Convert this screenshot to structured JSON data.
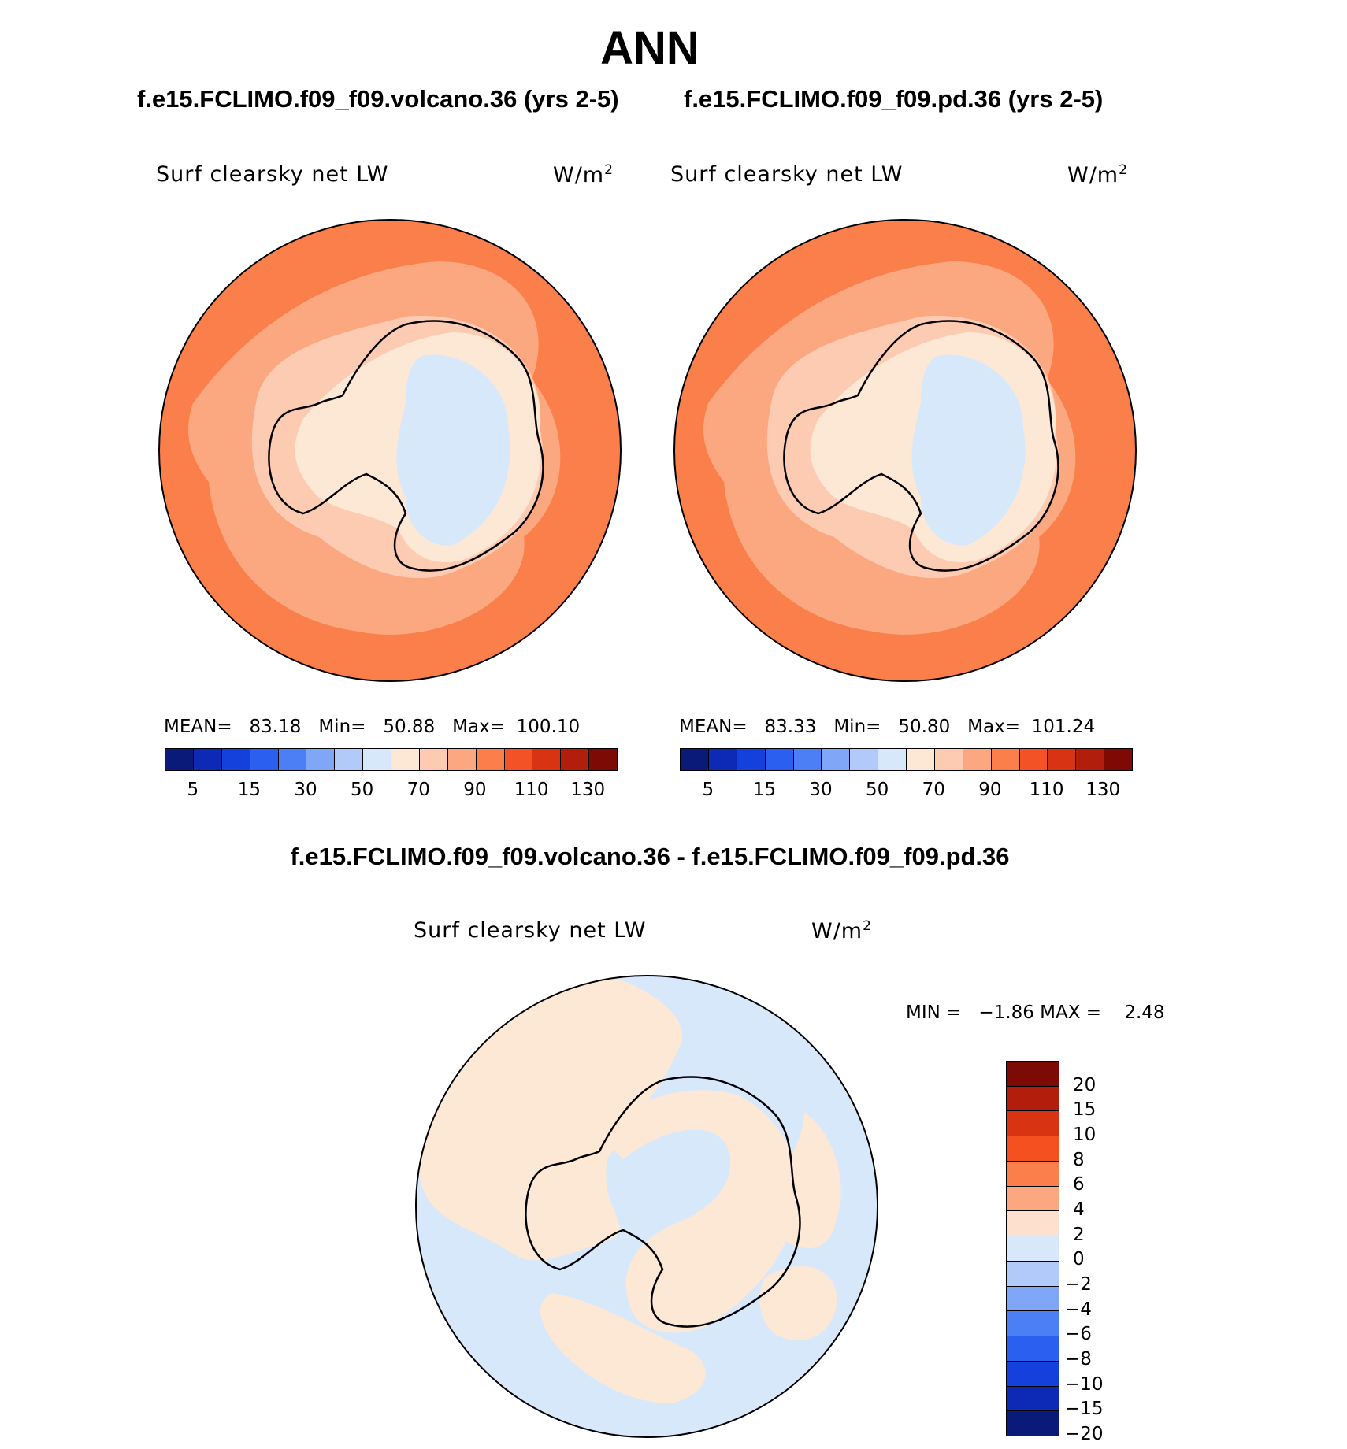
{
  "title": "ANN",
  "panels": [
    {
      "case": "f.e15.FCLIMO.f09_f09.volcano.36 (yrs 2-5)",
      "variable": "Surf  clearsky  net  LW",
      "units_base": "W/m",
      "units_exp": "2",
      "stats": {
        "mean_label": "MEAN=",
        "mean": "83.18",
        "min_label": "Min=",
        "min": "50.88",
        "max_label": "Max=",
        "max": "100.10"
      }
    },
    {
      "case": "f.e15.FCLIMO.f09_f09.pd.36 (yrs 2-5)",
      "variable": "Surf  clearsky  net  LW",
      "units_base": "W/m",
      "units_exp": "2",
      "stats": {
        "mean_label": "MEAN=",
        "mean": "83.33",
        "min_label": "Min=",
        "min": "50.80",
        "max_label": "Max=",
        "max": "101.24"
      }
    }
  ],
  "diff": {
    "title": "f.e15.FCLIMO.f09_f09.volcano.36 - f.e15.FCLIMO.f09_f09.pd.36",
    "variable": "Surf  clearsky  net  LW",
    "units_base": "W/m",
    "units_exp": "2",
    "stats": {
      "min_label": "MIN =",
      "min": "−1.86",
      "max_label": "MAX =",
      "max": "2.48"
    }
  },
  "colorbar_abs": {
    "colors": [
      "#0a1a78",
      "#0c2ab5",
      "#1440dc",
      "#2a5ff0",
      "#4c7ff5",
      "#80a6f8",
      "#b2caf9",
      "#d8e8fb",
      "#fde8d6",
      "#fccbb2",
      "#fba880",
      "#fa7f4b",
      "#f35226",
      "#d83313",
      "#b21d0c",
      "#7d0a05"
    ],
    "ticks": [
      "5",
      "15",
      "30",
      "50",
      "70",
      "90",
      "110",
      "130"
    ]
  },
  "colorbar_diff": {
    "colors": [
      "#7d0a05",
      "#b21d0c",
      "#d83313",
      "#f5501f",
      "#fa7f4b",
      "#fba880",
      "#fde0cd",
      "#d8e8fb",
      "#b2caf9",
      "#80a6f8",
      "#4c7ff5",
      "#2a5ff0",
      "#1440dc",
      "#0c2ab5",
      "#0a1a78"
    ],
    "ticks": [
      "20",
      "15",
      "10",
      "8",
      "6",
      "4",
      "2",
      "0",
      "−2",
      "−4",
      "−6",
      "−8",
      "−10",
      "−15",
      "−20"
    ]
  }
}
